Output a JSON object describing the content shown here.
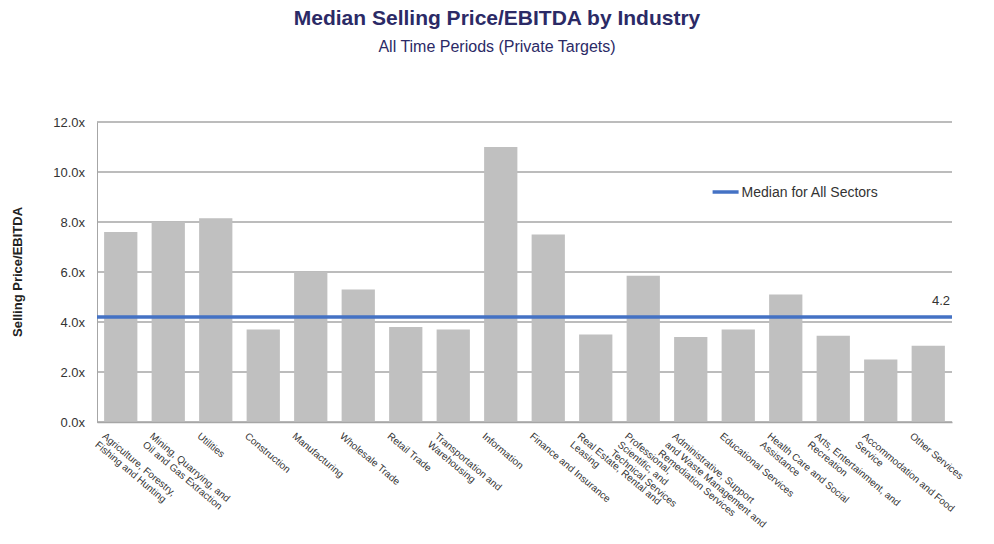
{
  "chart_data": {
    "type": "bar",
    "title": "Median Selling Price/EBITDA by Industry",
    "subtitle": "All Time Periods (Private Targets)",
    "y_label": "Selling Price/EBITDA",
    "categories": [
      "Agriculture, Forestry, Fishing and Hunting",
      "Mining, Quarrying, and Oil and Gas Extraction",
      "Utilities",
      "Construction",
      "Manufacturing",
      "Wholesale Trade",
      "Retail Trade",
      "Transportation and Warehousing",
      "Information",
      "Finance and Insurance",
      "Real Estate, Rental and Leasing",
      "Professional, Scientific, and Technical Services",
      "Administrative, Support and Waste Management and Remediation Services",
      "Educational Services",
      "Health Care and Social Assistance",
      "Arts, Entertainment, and Recreation",
      "Accommodation and Food Service",
      "Other Services"
    ],
    "values": [
      7.6,
      8.0,
      8.15,
      3.7,
      6.0,
      5.3,
      3.8,
      3.7,
      11.0,
      7.5,
      3.5,
      5.85,
      3.4,
      3.7,
      5.1,
      3.45,
      2.5,
      3.05
    ],
    "color": "#c0c0c0",
    "ylim": [
      0,
      12
    ],
    "yticks": [
      {
        "value": 0,
        "label": "0.0x"
      },
      {
        "value": 2,
        "label": "2.0x"
      },
      {
        "value": 4,
        "label": "4.0x"
      },
      {
        "value": 6,
        "label": "6.0x"
      },
      {
        "value": 8,
        "label": "8.0x"
      },
      {
        "value": 10,
        "label": "10.0x"
      },
      {
        "value": 12,
        "label": "12.0x"
      }
    ],
    "grid": true,
    "reference_line": {
      "name": "Median for All Sectors",
      "value": 4.2,
      "color": "#4472c4"
    }
  }
}
